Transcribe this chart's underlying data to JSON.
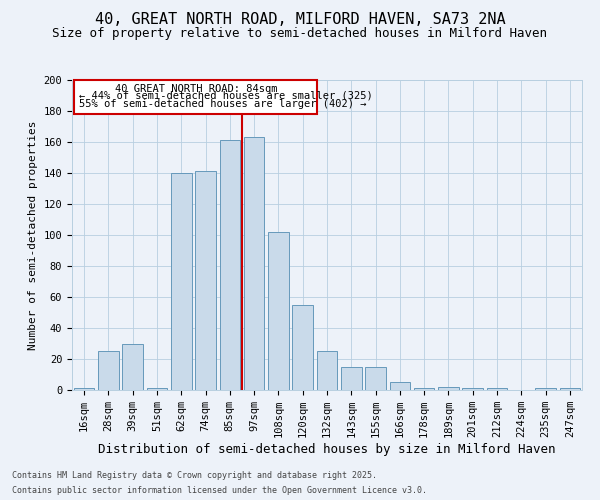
{
  "title": "40, GREAT NORTH ROAD, MILFORD HAVEN, SA73 2NA",
  "subtitle": "Size of property relative to semi-detached houses in Milford Haven",
  "xlabel": "Distribution of semi-detached houses by size in Milford Haven",
  "ylabel": "Number of semi-detached properties",
  "categories": [
    "16sqm",
    "28sqm",
    "39sqm",
    "51sqm",
    "62sqm",
    "74sqm",
    "85sqm",
    "97sqm",
    "108sqm",
    "120sqm",
    "132sqm",
    "143sqm",
    "155sqm",
    "166sqm",
    "178sqm",
    "189sqm",
    "201sqm",
    "212sqm",
    "224sqm",
    "235sqm",
    "247sqm"
  ],
  "values": [
    1,
    25,
    30,
    1,
    140,
    141,
    161,
    163,
    102,
    55,
    25,
    15,
    15,
    5,
    1,
    2,
    1,
    1,
    0,
    1,
    1
  ],
  "bar_color": "#c9daea",
  "bar_edge_color": "#6699bb",
  "highlight_index": 6,
  "vline_color": "#cc0000",
  "annotation_line1": "40 GREAT NORTH ROAD: 84sqm",
  "annotation_line2": "← 44% of semi-detached houses are smaller (325)",
  "annotation_line3": "55% of semi-detached houses are larger (402) →",
  "background_color": "#edf2f9",
  "grid_color": "#b8cfe0",
  "footer_line1": "Contains HM Land Registry data © Crown copyright and database right 2025.",
  "footer_line2": "Contains public sector information licensed under the Open Government Licence v3.0.",
  "ylim": [
    0,
    200
  ],
  "yticks": [
    0,
    20,
    40,
    60,
    80,
    100,
    120,
    140,
    160,
    180,
    200
  ],
  "title_fontsize": 11,
  "subtitle_fontsize": 9,
  "tick_fontsize": 7.5,
  "ylabel_fontsize": 8,
  "xlabel_fontsize": 9
}
